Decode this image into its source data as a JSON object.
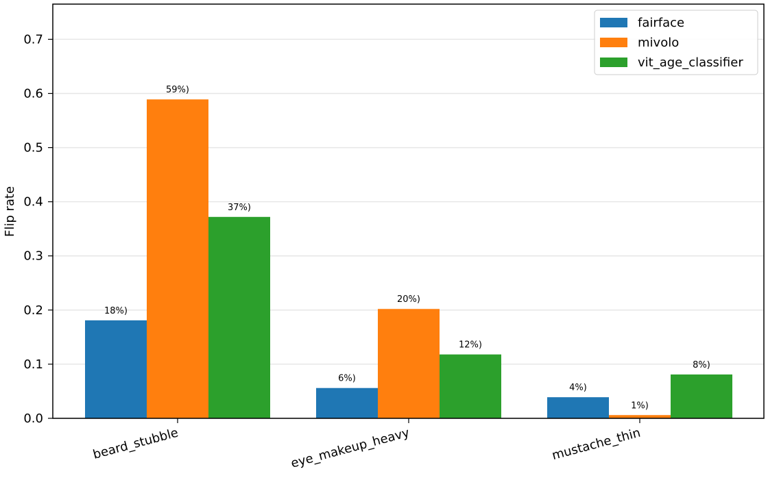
{
  "chart_data": {
    "type": "bar",
    "title": "",
    "xlabel": "",
    "ylabel": "Flip rate",
    "ylim": [
      0,
      0.765
    ],
    "yticks": [
      "0.0",
      "0.1",
      "0.2",
      "0.3",
      "0.4",
      "0.5",
      "0.6",
      "0.7"
    ],
    "grid": "horizontal",
    "legend_position": "top-right",
    "categories": [
      "beard_stubble",
      "eye_makeup_heavy",
      "mustache_thin"
    ],
    "series": [
      {
        "name": "fairface",
        "color": "#1f77b4",
        "values": [
          0.181,
          0.056,
          0.039
        ],
        "labels": [
          "18%)",
          "6%)",
          "4%)"
        ]
      },
      {
        "name": "mivolo",
        "color": "#ff7f0e",
        "values": [
          0.589,
          0.202,
          0.006
        ],
        "labels": [
          "59%)",
          "20%)",
          "1%)"
        ]
      },
      {
        "name": "vit_age_classifier",
        "color": "#2ca02c",
        "values": [
          0.372,
          0.118,
          0.081
        ],
        "labels": [
          "37%)",
          "12%)",
          "8%)"
        ]
      }
    ]
  }
}
